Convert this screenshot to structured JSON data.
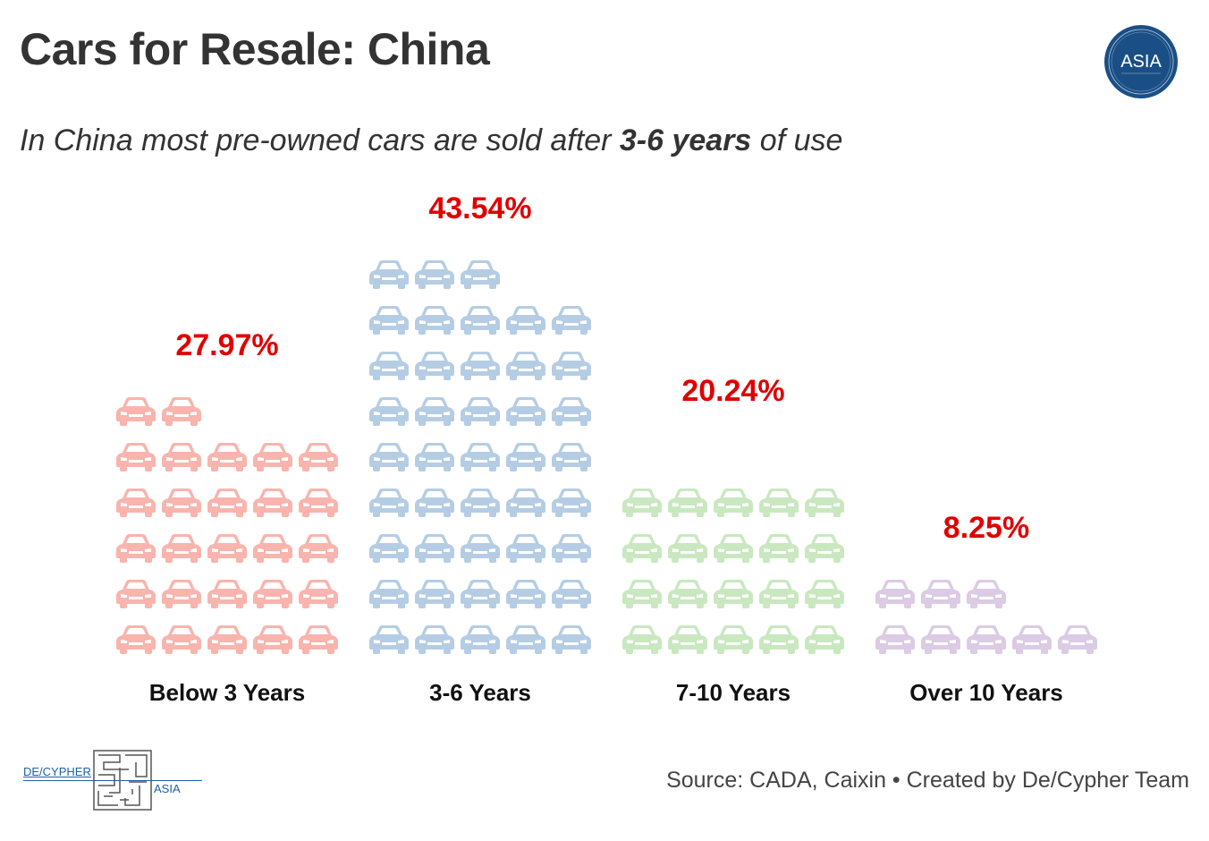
{
  "header": {
    "title": "Cars for Resale: China",
    "subtitle_pre": "In China most pre-owned cars are sold after ",
    "subtitle_bold": "3-6 years",
    "subtitle_post": " of use",
    "logo_text": "ASIA"
  },
  "footer": {
    "source": "Source: CADA, Caixin • Created by De/Cypher Team",
    "brand_left": "DE/CYPHER",
    "brand_right": "ASIA"
  },
  "chart_data": {
    "type": "bar",
    "categories": [
      "Below 3 Years",
      "3-6 Years",
      "7-10 Years",
      "Over 10 Years"
    ],
    "values": [
      27.97,
      43.54,
      20.24,
      8.25
    ],
    "value_labels": [
      "27.97%",
      "43.54%",
      "20.24%",
      "8.25%"
    ],
    "colors": [
      "#f8b4ad",
      "#b5cde4",
      "#c9e8c0",
      "#dccbe4"
    ],
    "label_color": "#e00000",
    "unit": "%"
  }
}
